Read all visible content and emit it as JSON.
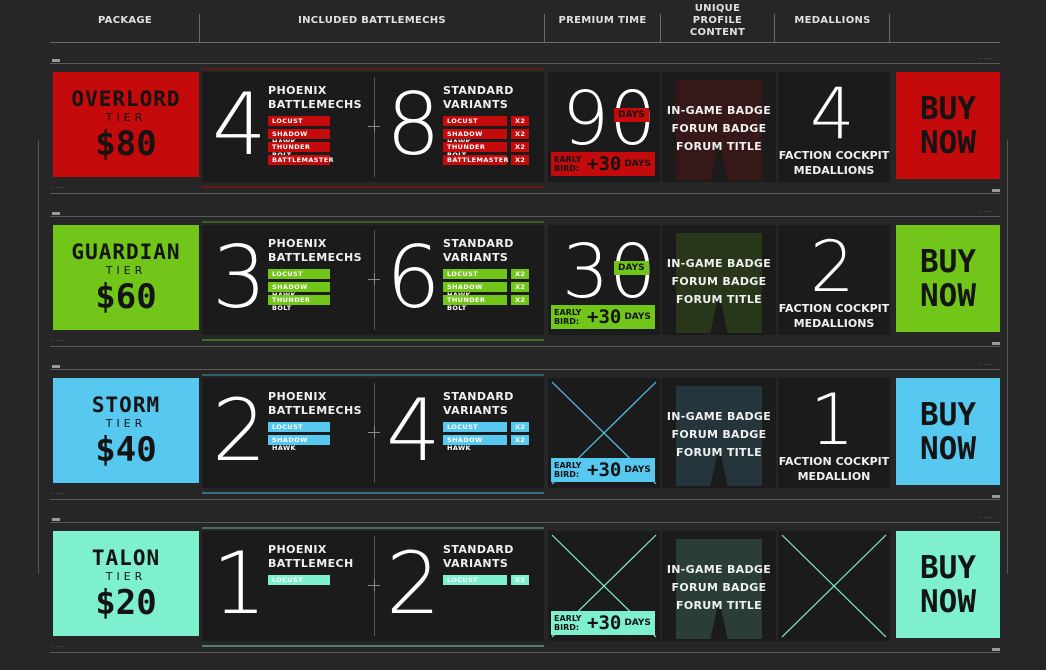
{
  "headers": {
    "package": "PACKAGE",
    "mechs": "INCLUDED BATTLEMECHS",
    "premium": "PREMIUM TIME",
    "unique": "UNIQUE PROFILE CONTENT",
    "medallions": "MEDALLIONS"
  },
  "common": {
    "tier": "TIER",
    "days": "DAYS",
    "early_bird": "EARLY BIRD:",
    "plus30": "+30",
    "ingame_badge": "IN-GAME BADGE",
    "forum_badge": "FORUM BADGE",
    "forum_title": "FORUM TITLE",
    "buy": "BUY",
    "now": "NOW",
    "x2": "X2",
    "standard_variants_1": "STANDARD",
    "standard_variants_2": "VARIANTS",
    "phoenix": "PHOENIX"
  },
  "tiers": [
    {
      "name": "OVERLORD",
      "price": "$80",
      "color": "#c40a0a",
      "phoenix_count": "4",
      "phoenix_label2": "BATTLEMECHS",
      "phoenix_mechs": [
        "LOCUST",
        "SHADOW HAWK",
        "THUNDER BOLT",
        "BATTLEMASTER"
      ],
      "variant_count": "8",
      "variant_mechs": [
        "LOCUST",
        "SHADOW HAWK",
        "THUNDER BOLT",
        "BATTLEMASTER"
      ],
      "premium_days": "90",
      "has_premium": true,
      "medallion_count": "4",
      "medallion_1": "FACTION COCKPIT",
      "medallion_2": "MEDALLIONS"
    },
    {
      "name": "GUARDIAN",
      "price": "$60",
      "color": "#72c61a",
      "phoenix_count": "3",
      "phoenix_label2": "BATTLEMECHS",
      "phoenix_mechs": [
        "LOCUST",
        "SHADOW HAWK",
        "THUNDER BOLT"
      ],
      "variant_count": "6",
      "variant_mechs": [
        "LOCUST",
        "SHADOW HAWK",
        "THUNDER BOLT"
      ],
      "premium_days": "30",
      "has_premium": true,
      "medallion_count": "2",
      "medallion_1": "FACTION COCKPIT",
      "medallion_2": "MEDALLIONS"
    },
    {
      "name": "STORM",
      "price": "$40",
      "color": "#57c8ef",
      "phoenix_count": "2",
      "phoenix_label2": "BATTLEMECHS",
      "phoenix_mechs": [
        "LOCUST",
        "SHADOW HAWK"
      ],
      "variant_count": "4",
      "variant_mechs": [
        "LOCUST",
        "SHADOW HAWK"
      ],
      "premium_days": "",
      "has_premium": false,
      "medallion_count": "1",
      "medallion_1": "FACTION COCKPIT",
      "medallion_2": "MEDALLION"
    },
    {
      "name": "TALON",
      "price": "$20",
      "color": "#7ef0cf",
      "phoenix_count": "1",
      "phoenix_label2": "BATTLEMECH",
      "phoenix_mechs": [
        "LOCUST"
      ],
      "variant_count": "2",
      "variant_mechs": [
        "LOCUST"
      ],
      "premium_days": "",
      "has_premium": false,
      "medallion_count": "",
      "medallion_1": "",
      "medallion_2": ""
    }
  ]
}
